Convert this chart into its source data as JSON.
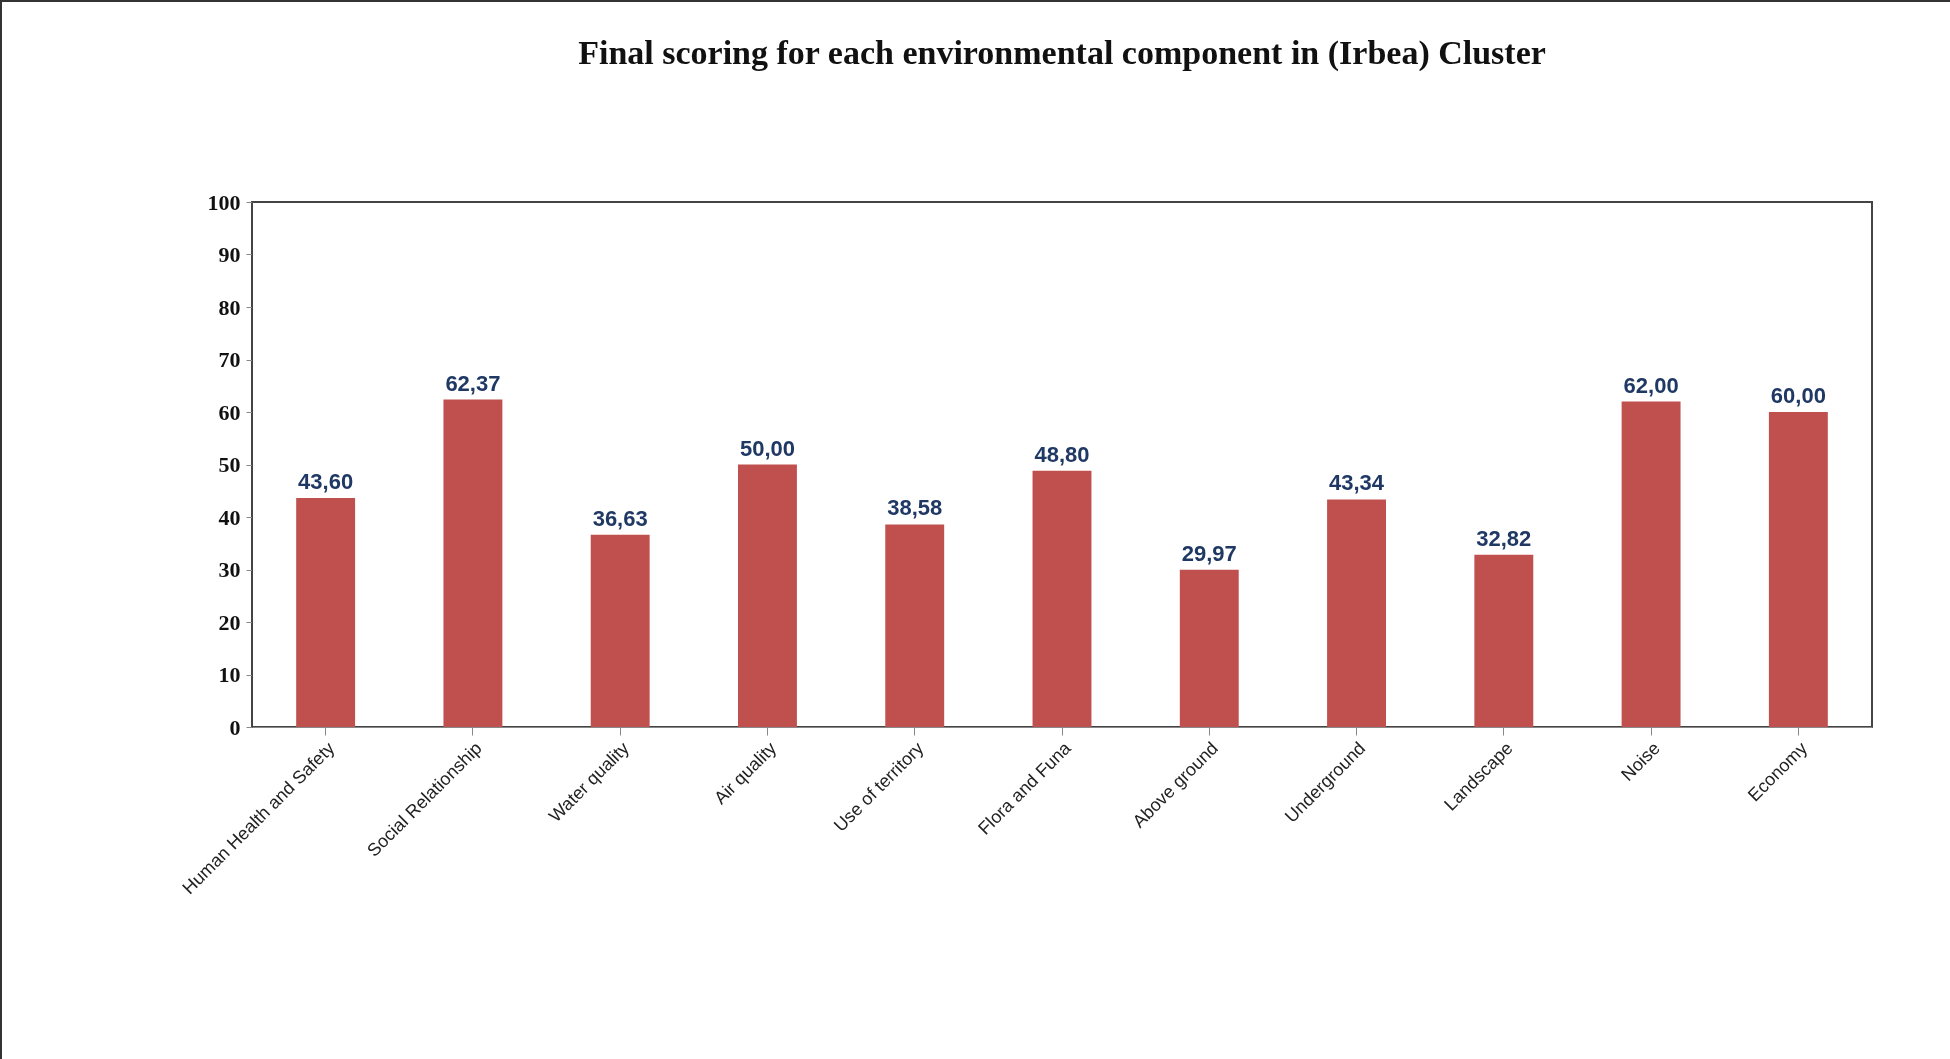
{
  "chart_data": {
    "type": "bar",
    "title": "Final scoring for each environmental component in (Irbea) Cluster",
    "categories": [
      "Human Health and Safety",
      "Social Relationship",
      "Water quality",
      "Air quality",
      "Use of territory",
      "Flora and Funa",
      "Above ground",
      "Underground",
      "Landscape",
      "Noise",
      "Economy"
    ],
    "values": [
      43.6,
      62.37,
      36.63,
      50.0,
      38.58,
      48.8,
      29.97,
      43.34,
      32.82,
      62.0,
      60.0
    ],
    "value_labels": [
      "43,60",
      "62,37",
      "36,63",
      "50,00",
      "38,58",
      "48,80",
      "29,97",
      "43,34",
      "32,82",
      "62,00",
      "60,00"
    ],
    "color": "#c0504d",
    "ylim": [
      0,
      100
    ],
    "yticks": [
      0,
      10,
      20,
      30,
      40,
      50,
      60,
      70,
      80,
      90,
      100
    ]
  }
}
